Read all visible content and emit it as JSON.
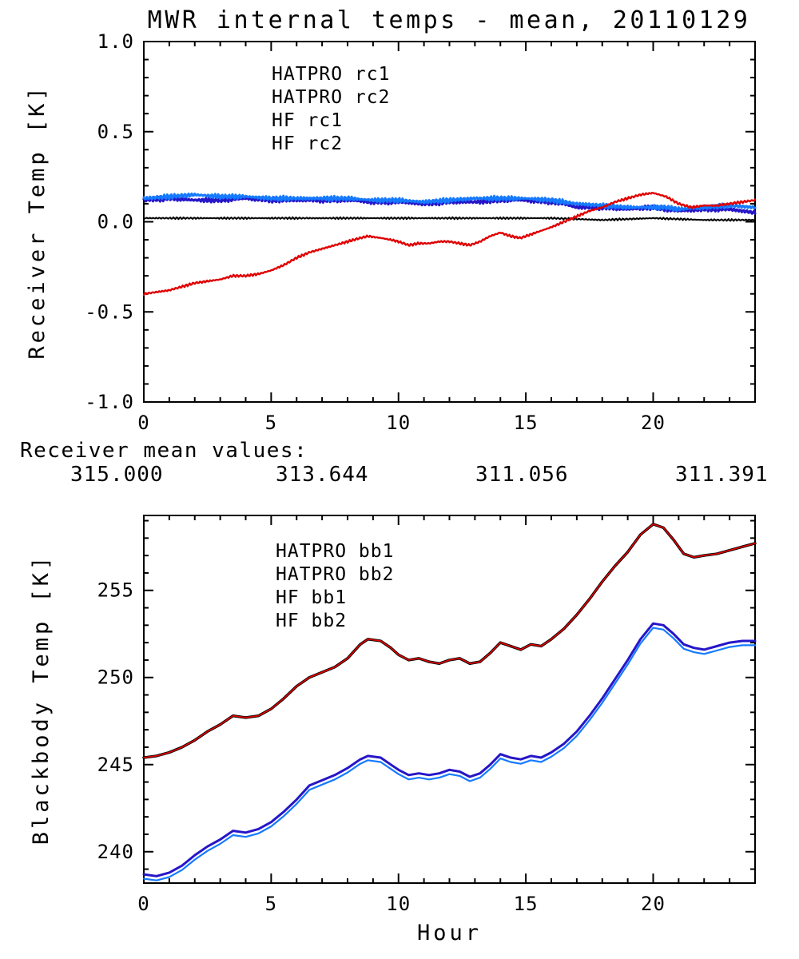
{
  "title": "MWR internal temps - mean, 20110129",
  "colors": {
    "black": "#000000",
    "red": "#e00000",
    "navy": "#2616c8",
    "lightblue": "#157aff",
    "frame": "#000000",
    "bg": "#ffffff"
  },
  "mean_values": {
    "label": "Receiver mean values:",
    "values": [
      {
        "text": "315.000",
        "color_key": "black"
      },
      {
        "text": "313.644",
        "color_key": "red"
      },
      {
        "text": "311.056",
        "color_key": "navy"
      },
      {
        "text": "311.391",
        "color_key": "lightblue"
      }
    ]
  },
  "chart_data": [
    {
      "type": "line",
      "title": "MWR internal temps - mean, 20110129",
      "xlabel": "",
      "ylabel": "Receiver Temp [K]",
      "xlim": [
        0,
        24
      ],
      "ylim": [
        -1.0,
        1.0
      ],
      "xticks": [
        0,
        5,
        10,
        15,
        20
      ],
      "xtick_labels": [
        "0",
        "5",
        "10",
        "15",
        "20"
      ],
      "minor_x": 1,
      "yticks": [
        -1.0,
        -0.5,
        0.0,
        0.5,
        1.0
      ],
      "ytick_labels": [
        "-1.0",
        "-0.5",
        "0.0",
        "0.5",
        "1.0"
      ],
      "minor_y": 0.1,
      "grid": false,
      "legend_position": "upper-left-inside",
      "legend": [
        {
          "label": "HATPRO rc1",
          "color_key": "black"
        },
        {
          "label": "HATPRO rc2",
          "color_key": "red"
        },
        {
          "label": "HF rc1",
          "color_key": "navy"
        },
        {
          "label": "HF rc2",
          "color_key": "lightblue"
        }
      ],
      "series": [
        {
          "name": "HF rc1",
          "color_key": "navy",
          "lw": 3.2,
          "jitter": 0.014,
          "x": [
            0,
            1,
            2,
            3,
            4,
            5,
            6,
            7,
            8,
            9,
            10,
            11,
            12,
            13,
            14,
            15,
            16,
            16.5,
            17,
            18,
            19,
            20,
            20.5,
            21,
            22,
            23,
            24
          ],
          "y": [
            0.12,
            0.13,
            0.12,
            0.12,
            0.13,
            0.12,
            0.12,
            0.12,
            0.12,
            0.11,
            0.11,
            0.1,
            0.11,
            0.11,
            0.12,
            0.12,
            0.11,
            0.1,
            0.08,
            0.08,
            0.07,
            0.08,
            0.07,
            0.06,
            0.07,
            0.07,
            0.05
          ]
        },
        {
          "name": "HF rc2",
          "color_key": "lightblue",
          "lw": 3.0,
          "jitter": 0.014,
          "x": [
            0,
            1,
            2,
            3,
            4,
            5,
            6,
            7,
            8,
            9,
            10,
            11,
            12,
            13,
            14,
            15,
            16,
            16.5,
            17,
            18,
            19,
            20,
            20.5,
            21,
            22,
            23,
            24
          ],
          "y": [
            0.13,
            0.14,
            0.15,
            0.14,
            0.14,
            0.13,
            0.13,
            0.13,
            0.13,
            0.12,
            0.12,
            0.11,
            0.12,
            0.13,
            0.13,
            0.13,
            0.12,
            0.11,
            0.1,
            0.09,
            0.08,
            0.08,
            0.08,
            0.07,
            0.08,
            0.09,
            0.08
          ]
        },
        {
          "name": "HATPRO rc1",
          "color_key": "black",
          "lw": 2.0,
          "jitter": 0.006,
          "x": [
            0,
            2,
            4,
            6,
            8,
            10,
            12,
            14,
            16,
            18,
            20,
            22,
            24
          ],
          "y": [
            0.02,
            0.02,
            0.02,
            0.02,
            0.02,
            0.02,
            0.02,
            0.02,
            0.02,
            0.01,
            0.02,
            0.01,
            0.01
          ]
        },
        {
          "name": "HATPRO rc2",
          "color_key": "red",
          "lw": 2.4,
          "jitter": 0.007,
          "x": [
            0,
            0.5,
            1,
            1.5,
            2,
            2.5,
            3,
            3.5,
            4,
            4.5,
            5,
            5.5,
            6,
            6.5,
            7,
            7.5,
            8,
            8.5,
            8.8,
            9.3,
            9.7,
            10,
            10.4,
            10.8,
            11.2,
            11.6,
            12,
            12.4,
            12.8,
            13.2,
            13.6,
            14,
            14.4,
            14.8,
            15.2,
            15.6,
            16,
            16.5,
            17,
            17.5,
            18,
            18.5,
            19,
            19.5,
            20,
            20.5,
            21,
            21.5,
            22,
            22.5,
            23,
            23.5,
            24
          ],
          "y": [
            -0.4,
            -0.39,
            -0.38,
            -0.36,
            -0.34,
            -0.33,
            -0.32,
            -0.3,
            -0.3,
            -0.29,
            -0.27,
            -0.24,
            -0.2,
            -0.17,
            -0.15,
            -0.13,
            -0.11,
            -0.09,
            -0.08,
            -0.09,
            -0.1,
            -0.11,
            -0.13,
            -0.12,
            -0.12,
            -0.11,
            -0.11,
            -0.12,
            -0.13,
            -0.11,
            -0.08,
            -0.06,
            -0.08,
            -0.09,
            -0.07,
            -0.05,
            -0.03,
            0.0,
            0.03,
            0.06,
            0.08,
            0.11,
            0.13,
            0.15,
            0.16,
            0.14,
            0.1,
            0.08,
            0.09,
            0.09,
            0.1,
            0.11,
            0.12
          ]
        }
      ]
    },
    {
      "type": "line",
      "title": "",
      "xlabel": "Hour",
      "ylabel": "Blackbody Temp [K]",
      "xlim": [
        0,
        24
      ],
      "ylim": [
        238.2,
        259.3
      ],
      "xticks": [
        0,
        5,
        10,
        15,
        20
      ],
      "xtick_labels": [
        "0",
        "5",
        "10",
        "15",
        "20"
      ],
      "minor_x": 1,
      "yticks": [
        240,
        245,
        250,
        255
      ],
      "ytick_labels": [
        "240",
        "245",
        "250",
        "255"
      ],
      "minor_y": 1,
      "grid": false,
      "legend_position": "upper-left-inside",
      "legend": [
        {
          "label": "HATPRO bb1",
          "color_key": "black"
        },
        {
          "label": "HATPRO bb2",
          "color_key": "red"
        },
        {
          "label": "HF bb1",
          "color_key": "navy"
        },
        {
          "label": "HF bb2",
          "color_key": "lightblue"
        }
      ],
      "series": [
        {
          "name": "HF bb1",
          "color_key": "navy",
          "lw": 3.0,
          "jitter": 0,
          "x": [
            0,
            0.5,
            1,
            1.5,
            2,
            2.5,
            3,
            3.5,
            4,
            4.5,
            5,
            5.5,
            6,
            6.5,
            7,
            7.5,
            8,
            8.5,
            8.8,
            9.3,
            9.7,
            10,
            10.4,
            10.8,
            11.2,
            11.6,
            12,
            12.4,
            12.8,
            13.2,
            13.6,
            14,
            14.4,
            14.8,
            15.2,
            15.6,
            16,
            16.5,
            17,
            17.5,
            18,
            18.5,
            19,
            19.5,
            20,
            20.4,
            20.8,
            21.2,
            21.6,
            22,
            22.5,
            23,
            23.5,
            24
          ],
          "y": [
            238.7,
            238.6,
            238.8,
            239.2,
            239.8,
            240.3,
            240.7,
            241.2,
            241.1,
            241.3,
            241.7,
            242.3,
            243.0,
            243.8,
            244.1,
            244.4,
            244.8,
            245.3,
            245.5,
            245.4,
            245.0,
            244.7,
            244.4,
            244.5,
            244.4,
            244.5,
            244.7,
            244.6,
            244.3,
            244.5,
            245.0,
            245.6,
            245.4,
            245.3,
            245.5,
            245.4,
            245.7,
            246.2,
            246.9,
            247.8,
            248.8,
            249.9,
            251.0,
            252.2,
            253.1,
            253.0,
            252.5,
            251.9,
            251.7,
            251.6,
            251.8,
            252.0,
            252.1,
            252.1
          ]
        },
        {
          "name": "HF bb2",
          "color_key": "lightblue",
          "lw": 2.2,
          "jitter": 0,
          "x": [
            0,
            0.5,
            1,
            1.5,
            2,
            2.5,
            3,
            3.5,
            4,
            4.5,
            5,
            5.5,
            6,
            6.5,
            7,
            7.5,
            8,
            8.5,
            8.8,
            9.3,
            9.7,
            10,
            10.4,
            10.8,
            11.2,
            11.6,
            12,
            12.4,
            12.8,
            13.2,
            13.6,
            14,
            14.4,
            14.8,
            15.2,
            15.6,
            16,
            16.5,
            17,
            17.5,
            18,
            18.5,
            19,
            19.5,
            20,
            20.4,
            20.8,
            21.2,
            21.6,
            22,
            22.5,
            23,
            23.5,
            24
          ],
          "y": [
            238.45,
            238.35,
            238.55,
            238.95,
            239.55,
            240.05,
            240.45,
            240.95,
            240.85,
            241.05,
            241.45,
            242.05,
            242.75,
            243.55,
            243.85,
            244.15,
            244.55,
            245.05,
            245.25,
            245.15,
            244.75,
            244.45,
            244.15,
            244.25,
            244.15,
            244.25,
            244.45,
            244.35,
            244.05,
            244.25,
            244.75,
            245.35,
            245.15,
            245.05,
            245.25,
            245.15,
            245.45,
            245.95,
            246.65,
            247.55,
            248.55,
            249.65,
            250.75,
            251.95,
            252.85,
            252.75,
            252.25,
            251.65,
            251.45,
            251.35,
            251.55,
            251.75,
            251.85,
            251.85
          ]
        },
        {
          "name": "HATPRO bb1",
          "color_key": "black",
          "lw": 3.4,
          "jitter": 0,
          "x": [
            0,
            0.5,
            1,
            1.5,
            2,
            2.5,
            3,
            3.5,
            4,
            4.5,
            5,
            5.5,
            6,
            6.5,
            7,
            7.5,
            8,
            8.5,
            8.8,
            9.3,
            9.7,
            10,
            10.4,
            10.8,
            11.2,
            11.6,
            12,
            12.4,
            12.8,
            13.2,
            13.6,
            14,
            14.4,
            14.8,
            15.2,
            15.6,
            16,
            16.5,
            17,
            17.5,
            18,
            18.5,
            19,
            19.5,
            20,
            20.4,
            20.8,
            21.2,
            21.6,
            22,
            22.5,
            23,
            23.5,
            24
          ],
          "y": [
            245.4,
            245.5,
            245.7,
            246.0,
            246.4,
            246.9,
            247.3,
            247.8,
            247.7,
            247.8,
            248.2,
            248.8,
            249.5,
            250.0,
            250.3,
            250.6,
            251.1,
            251.9,
            252.2,
            252.1,
            251.7,
            251.3,
            251.0,
            251.1,
            250.9,
            250.8,
            251.0,
            251.1,
            250.8,
            250.9,
            251.4,
            252.0,
            251.8,
            251.6,
            251.9,
            251.8,
            252.2,
            252.8,
            253.6,
            254.5,
            255.5,
            256.4,
            257.2,
            258.2,
            258.8,
            258.6,
            257.9,
            257.1,
            256.9,
            257.0,
            257.1,
            257.3,
            257.5,
            257.7
          ]
        },
        {
          "name": "HATPRO bb2",
          "color_key": "red",
          "lw": 1.7,
          "jitter": 0,
          "x": [
            0,
            0.5,
            1,
            1.5,
            2,
            2.5,
            3,
            3.5,
            4,
            4.5,
            5,
            5.5,
            6,
            6.5,
            7,
            7.5,
            8,
            8.5,
            8.8,
            9.3,
            9.7,
            10,
            10.4,
            10.8,
            11.2,
            11.6,
            12,
            12.4,
            12.8,
            13.2,
            13.6,
            14,
            14.4,
            14.8,
            15.2,
            15.6,
            16,
            16.5,
            17,
            17.5,
            18,
            18.5,
            19,
            19.5,
            20,
            20.4,
            20.8,
            21.2,
            21.6,
            22,
            22.5,
            23,
            23.5,
            24
          ],
          "y": [
            245.4,
            245.5,
            245.7,
            246.0,
            246.4,
            246.9,
            247.3,
            247.8,
            247.7,
            247.8,
            248.2,
            248.8,
            249.5,
            250.0,
            250.3,
            250.6,
            251.1,
            251.9,
            252.2,
            252.1,
            251.7,
            251.3,
            251.0,
            251.1,
            250.9,
            250.8,
            251.0,
            251.1,
            250.8,
            250.9,
            251.4,
            252.0,
            251.8,
            251.6,
            251.9,
            251.8,
            252.2,
            252.8,
            253.6,
            254.5,
            255.5,
            256.4,
            257.2,
            258.2,
            258.8,
            258.6,
            257.9,
            257.1,
            256.9,
            257.0,
            257.1,
            257.3,
            257.5,
            257.7
          ]
        }
      ]
    }
  ]
}
